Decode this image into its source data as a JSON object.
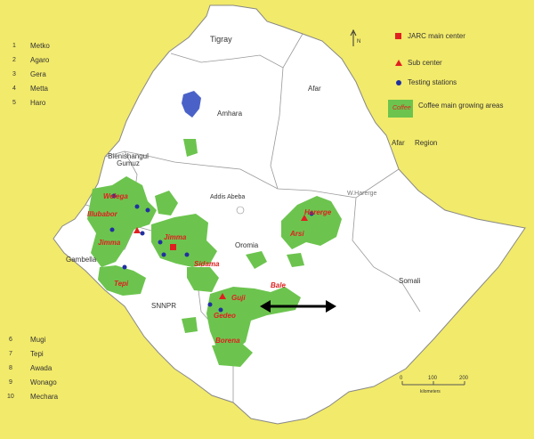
{
  "colors": {
    "background": "#f2ea6a",
    "country": "#ffffff",
    "coffee": "#6cc44e",
    "lake": "#4a62c8",
    "main_center": "#e02020",
    "sub_center": "#e02020",
    "station": "#2030a0",
    "arrow": "#000000"
  },
  "stations_top": [
    {
      "num": "1",
      "name": "Metko"
    },
    {
      "num": "2",
      "name": "Agaro"
    },
    {
      "num": "3",
      "name": "Gera"
    },
    {
      "num": "4",
      "name": "Metta"
    },
    {
      "num": "5",
      "name": "Haro"
    }
  ],
  "stations_bottom": [
    {
      "num": "6",
      "name": "Mugi"
    },
    {
      "num": "7",
      "name": "Tepi"
    },
    {
      "num": "8",
      "name": "Awada"
    },
    {
      "num": "9",
      "name": "Wonago"
    },
    {
      "num": "10",
      "name": "Mechara"
    }
  ],
  "legend": {
    "main_center": "JARC main center",
    "sub_center": "Sub center",
    "testing": "Testing stations",
    "coffee_swatch": "Coffee",
    "coffee": "Coffee main growing areas",
    "region_sample": "Afar",
    "region": "Region"
  },
  "regions": {
    "tigray": "Tigray",
    "afar": "Afar",
    "amhara": "Amhara",
    "benishangul": "Bienishangul Gumuz",
    "addis": "Addis Abeba",
    "oromia": "Oromia",
    "gambella": "Gambella",
    "snnpr": "SNNPR",
    "somali": "Somali"
  },
  "zones": {
    "welega": "Welega",
    "illubabor": "Illubabor",
    "jimma": "Jimma",
    "bench": "Tepi",
    "harerge": "Harerge",
    "arsi": "Arsi",
    "bale": "Bale",
    "sidama": "Sidama",
    "gedeo": "Gedeo",
    "borena": "Borena",
    "west_harerge": "W.Harerge",
    "jimma2": "Jimma",
    "guji": "Guji"
  },
  "north_label": "N",
  "scale": {
    "ticks": [
      "0",
      "100",
      "200"
    ],
    "unit": "kilometers"
  }
}
